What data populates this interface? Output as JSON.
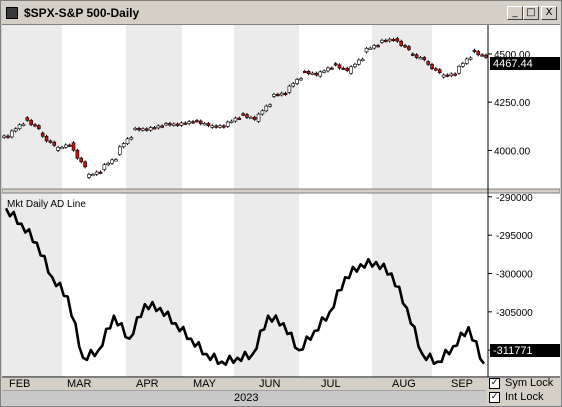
{
  "window": {
    "title": "$SPX-S&P 500-Daily",
    "buttons": {
      "minimize": "_",
      "maximize": "□",
      "close": "X"
    }
  },
  "colors": {
    "up_candle": "#ffffff",
    "down_candle": "#cc1010",
    "ad_line": "#000000",
    "current_price_box": "#000000"
  },
  "price_panel": {
    "y_ticks": [
      "4500.00",
      "4250.00",
      "4000.00"
    ],
    "current_price": "4467.44"
  },
  "ad_panel": {
    "label": "Mkt Daily AD Line",
    "y_ticks": [
      "-290000",
      "-295000",
      "-300000",
      "-305000",
      "-310000"
    ],
    "current_value": "-311771"
  },
  "x_axis": {
    "months": [
      "FEB",
      "MAR",
      "APR",
      "MAY",
      "JUN",
      "JUL",
      "AUG",
      "SEP"
    ],
    "year": "2023"
  },
  "controls": {
    "sym_lock": {
      "label": "Sym Lock",
      "checked": true,
      "mark": "✓"
    },
    "int_lock": {
      "label": "Int Lock",
      "checked": true,
      "mark": "✓"
    }
  },
  "chart_data": [
    {
      "type": "candlestick",
      "title": "$SPX-S&P 500-Daily",
      "x": [
        "Jan 30",
        "Feb 6",
        "Feb 13",
        "Feb 21",
        "Feb 27",
        "Mar 6",
        "Mar 13",
        "Mar 20",
        "Mar 27",
        "Apr 3",
        "Apr 10",
        "Apr 17",
        "Apr 24",
        "May 1",
        "May 8",
        "May 15",
        "May 22",
        "May 30",
        "Jun 5",
        "Jun 12",
        "Jun 20",
        "Jun 26",
        "Jul 3",
        "Jul 10",
        "Jul 17",
        "Jul 24",
        "Jul 31",
        "Aug 7",
        "Aug 14",
        "Aug 21",
        "Aug 28",
        "Sep 5"
      ],
      "close": [
        4070,
        4170,
        4090,
        4000,
        4040,
        3860,
        3900,
        3980,
        4110,
        4105,
        4135,
        4130,
        4155,
        4120,
        4125,
        4190,
        4150,
        4280,
        4300,
        4410,
        4385,
        4450,
        4400,
        4510,
        4560,
        4580,
        4500,
        4460,
        4380,
        4400,
        4520,
        4467.44
      ],
      "ylabel": "",
      "ylim": [
        3800,
        4650
      ]
    },
    {
      "type": "line",
      "title": "Mkt Daily AD Line",
      "x": [
        "Jan 30",
        "Feb 6",
        "Feb 13",
        "Feb 21",
        "Feb 27",
        "Mar 6",
        "Mar 13",
        "Mar 20",
        "Mar 27",
        "Apr 3",
        "Apr 10",
        "Apr 17",
        "Apr 24",
        "May 1",
        "May 8",
        "May 15",
        "May 22",
        "May 30",
        "Jun 5",
        "Jun 12",
        "Jun 20",
        "Jun 26",
        "Jul 3",
        "Jul 10",
        "Jul 17",
        "Jul 24",
        "Jul 31",
        "Aug 7",
        "Aug 14",
        "Aug 21",
        "Aug 28",
        "Sep 5"
      ],
      "y": [
        -291500,
        -293500,
        -296000,
        -300500,
        -303000,
        -311000,
        -310000,
        -305500,
        -308500,
        -304000,
        -304500,
        -306500,
        -308500,
        -310500,
        -311500,
        -311000,
        -310500,
        -305500,
        -306500,
        -310000,
        -307500,
        -305000,
        -300500,
        -298800,
        -298500,
        -300000,
        -304500,
        -310500,
        -311500,
        -309500,
        -307000,
        -311771
      ],
      "ylim": [
        -313500,
        -289500
      ]
    }
  ]
}
